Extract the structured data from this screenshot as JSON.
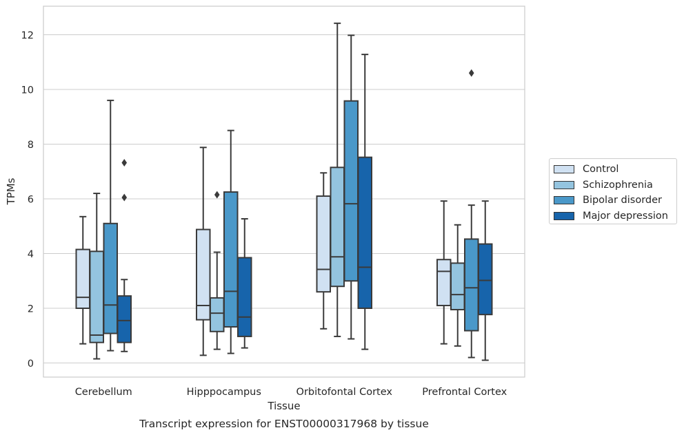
{
  "chart_data": {
    "type": "box",
    "title": "Transcript expression for ENST00000317968 by tissue",
    "xlabel": "Tissue",
    "ylabel": "TPMs",
    "ylim": [
      -0.5,
      13
    ],
    "yticks": [
      0,
      2,
      4,
      6,
      8,
      10,
      12
    ],
    "grid": "horizontal",
    "legend_position": "right",
    "categories": [
      "Cerebellum",
      "Hipppocampus",
      "Orbitofontal Cortex",
      "Prefrontal Cortex"
    ],
    "series": [
      {
        "name": "Control",
        "color": "#d0e1f2",
        "boxes": [
          {
            "whisker_low": 0.7,
            "q1": 2.0,
            "median": 2.4,
            "q3": 4.15,
            "whisker_high": 5.35,
            "outliers": []
          },
          {
            "whisker_low": 0.28,
            "q1": 1.58,
            "median": 2.1,
            "q3": 4.88,
            "whisker_high": 7.88,
            "outliers": []
          },
          {
            "whisker_low": 1.25,
            "q1": 2.6,
            "median": 3.42,
            "q3": 6.1,
            "whisker_high": 6.95,
            "outliers": []
          },
          {
            "whisker_low": 0.7,
            "q1": 2.1,
            "median": 3.35,
            "q3": 3.78,
            "whisker_high": 5.92,
            "outliers": []
          }
        ]
      },
      {
        "name": "Schizophrenia",
        "color": "#94c4df",
        "boxes": [
          {
            "whisker_low": 0.15,
            "q1": 0.75,
            "median": 1.02,
            "q3": 4.08,
            "whisker_high": 6.2,
            "outliers": []
          },
          {
            "whisker_low": 0.5,
            "q1": 1.15,
            "median": 1.82,
            "q3": 2.38,
            "whisker_high": 4.05,
            "outliers": [
              6.15
            ]
          },
          {
            "whisker_low": 0.97,
            "q1": 2.8,
            "median": 3.88,
            "q3": 7.15,
            "whisker_high": 12.42,
            "outliers": []
          },
          {
            "whisker_low": 0.62,
            "q1": 1.95,
            "median": 2.5,
            "q3": 3.65,
            "whisker_high": 5.05,
            "outliers": []
          }
        ]
      },
      {
        "name": "Bipolar disorder",
        "color": "#4a98c9",
        "boxes": [
          {
            "whisker_low": 0.45,
            "q1": 1.08,
            "median": 2.12,
            "q3": 5.1,
            "whisker_high": 9.6,
            "outliers": []
          },
          {
            "whisker_low": 0.35,
            "q1": 1.32,
            "median": 2.62,
            "q3": 6.25,
            "whisker_high": 8.5,
            "outliers": []
          },
          {
            "whisker_low": 0.88,
            "q1": 3.0,
            "median": 5.82,
            "q3": 9.58,
            "whisker_high": 11.98,
            "outliers": []
          },
          {
            "whisker_low": 0.2,
            "q1": 1.18,
            "median": 2.75,
            "q3": 4.53,
            "whisker_high": 5.77,
            "outliers": [
              10.6
            ]
          }
        ]
      },
      {
        "name": "Major depression",
        "color": "#1764ab",
        "boxes": [
          {
            "whisker_low": 0.42,
            "q1": 0.75,
            "median": 1.55,
            "q3": 2.45,
            "whisker_high": 3.05,
            "outliers": [
              6.05,
              7.32
            ]
          },
          {
            "whisker_low": 0.55,
            "q1": 0.97,
            "median": 1.68,
            "q3": 3.85,
            "whisker_high": 5.27,
            "outliers": []
          },
          {
            "whisker_low": 0.5,
            "q1": 2.0,
            "median": 3.5,
            "q3": 7.52,
            "whisker_high": 11.28,
            "outliers": []
          },
          {
            "whisker_low": 0.1,
            "q1": 1.77,
            "median": 3.02,
            "q3": 4.35,
            "whisker_high": 5.92,
            "outliers": []
          }
        ]
      }
    ]
  }
}
